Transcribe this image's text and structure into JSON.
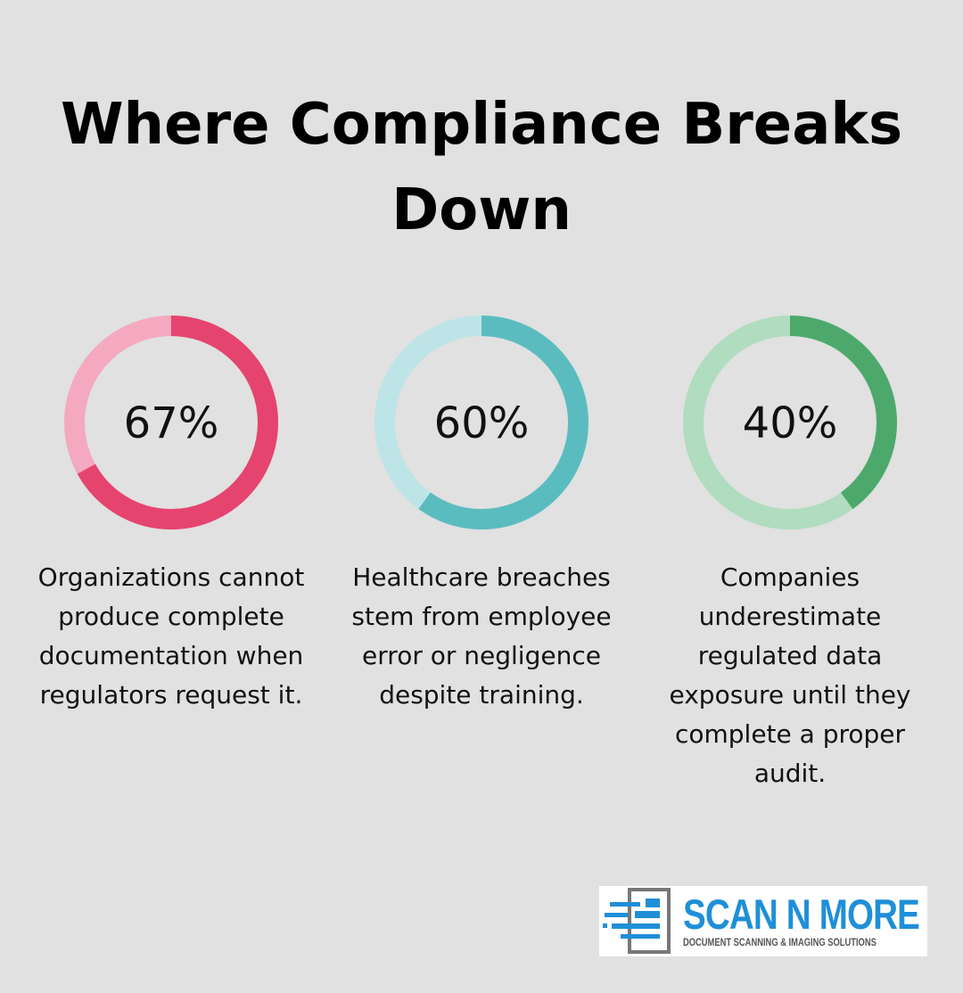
{
  "title": "Where Compliance Breaks Down",
  "chart_data": [
    {
      "type": "donut",
      "values": [
        67
      ],
      "value_labels": [
        "67%"
      ],
      "ylim": [
        0,
        100
      ],
      "caption": "Organizations cannot produce complete documentation when regulators request it.",
      "color": "#e5446f",
      "track_color": "#f4a9c0"
    },
    {
      "type": "donut",
      "values": [
        60
      ],
      "value_labels": [
        "60%"
      ],
      "ylim": [
        0,
        100
      ],
      "caption": "Healthcare breaches stem from employee error or negligence despite training.",
      "color": "#5bbcc0",
      "track_color": "#bde4e6"
    },
    {
      "type": "donut",
      "values": [
        40
      ],
      "value_labels": [
        "40%"
      ],
      "ylim": [
        0,
        100
      ],
      "caption": "Companies underestimate regulated data exposure until they complete a proper audit.",
      "color": "#4da96b",
      "track_color": "#b0dcc0"
    }
  ],
  "logo": {
    "name": "SCAN N MORE",
    "tagline": "DOCUMENT SCANNING & IMAGING SOLUTIONS"
  }
}
